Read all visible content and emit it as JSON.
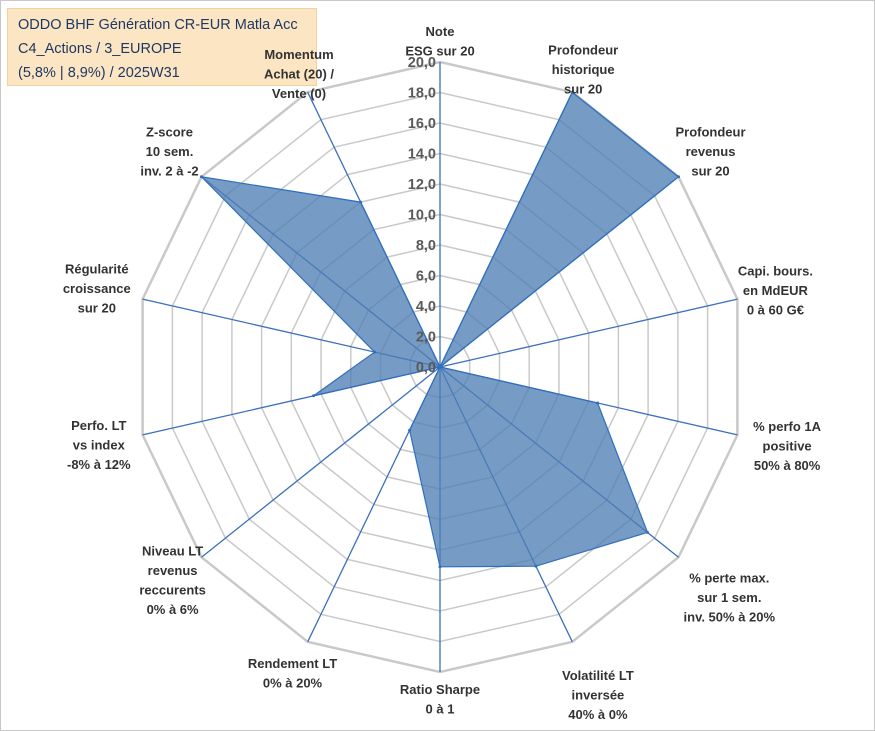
{
  "title": {
    "line1": "ODDO BHF Génération CR-EUR Matla Acc",
    "line2": "C4_Actions / 3_EUROPE",
    "line3": "(5,8% | 8,9%) / 2025W31"
  },
  "colors": {
    "fill": "#4f7fb3",
    "stroke": "#2f6fbf",
    "grid": "#c9c9c9",
    "spoke": "#3c6fbd",
    "title_bg": "#fbe5c2",
    "title_text": "#1f3864"
  },
  "chart_data": {
    "type": "radar",
    "rlim": [
      0,
      20
    ],
    "tick_step": 2,
    "tick_labels": [
      "0,0",
      "2,0",
      "4,0",
      "6,0",
      "8,0",
      "10,0",
      "12,0",
      "14,0",
      "16,0",
      "18,0",
      "20,0"
    ],
    "axes": [
      {
        "label": [
          "Note",
          "ESG sur 20"
        ],
        "value": 0,
        "label_color": "#333333"
      },
      {
        "label": [
          "Profondeur",
          "historique",
          "sur 20"
        ],
        "value": 20
      },
      {
        "label": [
          "Profondeur",
          "revenus",
          "sur 20"
        ],
        "value": 20
      },
      {
        "label": [
          "Capi. bours.",
          "en MdEUR",
          "0 à 60 G€"
        ],
        "value": 0
      },
      {
        "label": [
          "% perfo 1A",
          "positive",
          "50% à 80%"
        ],
        "value": 10.6
      },
      {
        "label": [
          "% perte max.",
          "sur 1 sem.",
          "inv. 50% à 20%"
        ],
        "value": 17.4
      },
      {
        "label": [
          "Volatilité LT",
          "inversée",
          "40% à 0%"
        ],
        "value": 14.5
      },
      {
        "label": [
          "Ratio Sharpe",
          "0 à 1"
        ],
        "value": 13.1
      },
      {
        "label": [
          "Rendement LT",
          "0% à 20%"
        ],
        "value": 4.6
      },
      {
        "label": [
          "Niveau LT",
          "revenus",
          "reccurents",
          "0% à 6%"
        ],
        "value": 0
      },
      {
        "label": [
          "Perfo. LT",
          "vs index",
          "-8% à 12%"
        ],
        "value": 8.5
      },
      {
        "label": [
          "Régularité",
          "croissance",
          "sur 20"
        ],
        "value": 4.4
      },
      {
        "label": [
          "Z-score",
          "10 sem.",
          "inv. 2 à -2"
        ],
        "value": 20
      },
      {
        "label": [
          "Momentum",
          "Achat (20) /",
          "Vente (0)"
        ],
        "value": 12.0,
        "label_color": "#c9a36b"
      }
    ]
  }
}
